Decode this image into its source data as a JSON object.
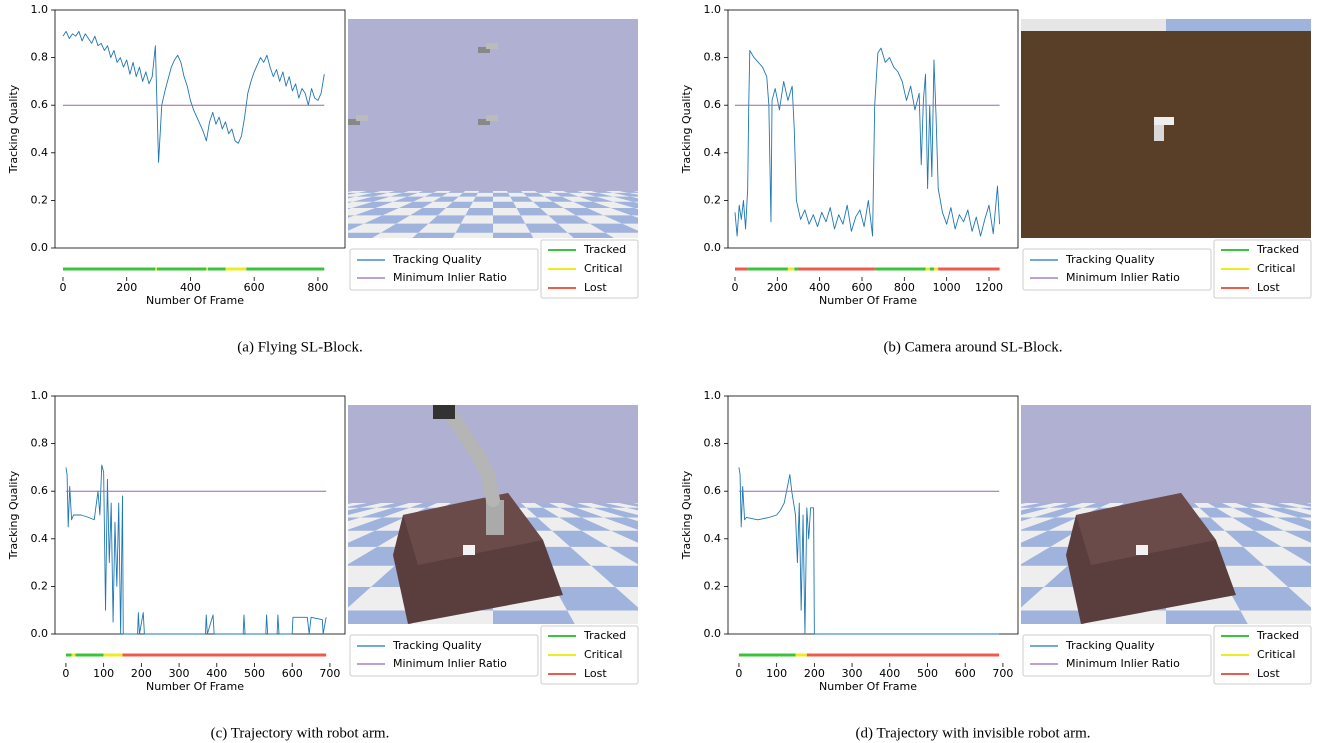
{
  "chart_data": [
    {
      "type": "line",
      "caption": "(a) Flying SL-Block.",
      "y_label": "Tracking Quality",
      "x_label": "Number Of Frame",
      "xlim": [
        -25,
        885
      ],
      "xticks": [
        0,
        200,
        400,
        600,
        800
      ],
      "ylim": [
        0,
        1
      ],
      "yticks": [
        {
          "value": 0,
          "label": "0.0"
        },
        0.2,
        0.4,
        0.6,
        0.8,
        {
          "value": 1,
          "label": "1.0"
        }
      ],
      "series": [
        {
          "name": "Tracking Quality",
          "color": "#1f77b4",
          "x": [
            0,
            10,
            20,
            30,
            40,
            50,
            60,
            70,
            80,
            90,
            100,
            110,
            120,
            130,
            140,
            150,
            160,
            170,
            180,
            190,
            200,
            210,
            220,
            230,
            240,
            250,
            260,
            270,
            280,
            290,
            295,
            300,
            310,
            320,
            330,
            340,
            350,
            360,
            370,
            380,
            390,
            400,
            410,
            420,
            430,
            440,
            450,
            460,
            470,
            480,
            490,
            500,
            510,
            520,
            530,
            540,
            550,
            560,
            570,
            580,
            590,
            600,
            610,
            620,
            630,
            640,
            650,
            660,
            670,
            680,
            690,
            700,
            710,
            720,
            730,
            740,
            750,
            760,
            770,
            780,
            790,
            800,
            810,
            820
          ],
          "values": [
            0.89,
            0.91,
            0.88,
            0.9,
            0.89,
            0.91,
            0.87,
            0.9,
            0.88,
            0.86,
            0.89,
            0.85,
            0.86,
            0.83,
            0.85,
            0.8,
            0.83,
            0.78,
            0.8,
            0.76,
            0.79,
            0.73,
            0.78,
            0.72,
            0.76,
            0.7,
            0.74,
            0.69,
            0.72,
            0.85,
            0.6,
            0.36,
            0.6,
            0.66,
            0.71,
            0.76,
            0.79,
            0.81,
            0.78,
            0.72,
            0.68,
            0.62,
            0.58,
            0.55,
            0.52,
            0.49,
            0.45,
            0.53,
            0.57,
            0.52,
            0.55,
            0.5,
            0.53,
            0.48,
            0.5,
            0.45,
            0.44,
            0.47,
            0.55,
            0.65,
            0.7,
            0.74,
            0.77,
            0.8,
            0.78,
            0.81,
            0.76,
            0.72,
            0.75,
            0.7,
            0.74,
            0.68,
            0.72,
            0.66,
            0.69,
            0.63,
            0.67,
            0.65,
            0.6,
            0.67,
            0.63,
            0.62,
            0.65,
            0.73
          ]
        },
        {
          "name": "Minimum Inlier Ratio",
          "color": "#9467bd",
          "x": [
            0,
            820
          ],
          "values": [
            0.6,
            0.6
          ]
        }
      ],
      "status": [
        {
          "name": "Tracked",
          "color": "#3ac43a",
          "segments": [
            [
              0,
              290
            ],
            [
              295,
              450
            ],
            [
              455,
              510
            ],
            [
              575,
              820
            ]
          ]
        },
        {
          "name": "Critical",
          "color": "#ecec20",
          "segments": [
            [
              290,
              295
            ],
            [
              450,
              455
            ],
            [
              510,
              575
            ]
          ]
        },
        {
          "name": "Lost",
          "color": "#f05a4a",
          "segments": []
        }
      ]
    },
    {
      "type": "line",
      "caption": "(b) Camera around SL-Block.",
      "y_label": "Tracking Quality",
      "x_label": "Number Of Frame",
      "xlim": [
        -33,
        1337
      ],
      "xticks": [
        0,
        200,
        400,
        600,
        800,
        1000,
        1200
      ],
      "ylim": [
        0,
        1
      ],
      "yticks": [
        {
          "value": 0,
          "label": "0.0"
        },
        0.2,
        0.4,
        0.6,
        0.8,
        {
          "value": 1,
          "label": "1.0"
        }
      ],
      "series": [
        {
          "name": "Tracking Quality",
          "color": "#1f77b4",
          "x": [
            0,
            10,
            20,
            30,
            40,
            50,
            60,
            65,
            70,
            90,
            110,
            130,
            150,
            160,
            170,
            175,
            190,
            210,
            230,
            250,
            270,
            280,
            290,
            310,
            330,
            350,
            370,
            390,
            410,
            430,
            450,
            470,
            490,
            510,
            530,
            550,
            570,
            590,
            610,
            630,
            650,
            660,
            675,
            690,
            710,
            730,
            750,
            770,
            790,
            810,
            830,
            850,
            870,
            880,
            890,
            900,
            910,
            920,
            930,
            940,
            950,
            960,
            980,
            1000,
            1020,
            1040,
            1060,
            1080,
            1100,
            1120,
            1140,
            1160,
            1180,
            1200,
            1220,
            1240,
            1250
          ],
          "values": [
            0.15,
            0.05,
            0.18,
            0.12,
            0.2,
            0.08,
            0.25,
            0.6,
            0.83,
            0.8,
            0.78,
            0.76,
            0.72,
            0.6,
            0.11,
            0.62,
            0.67,
            0.58,
            0.7,
            0.62,
            0.68,
            0.5,
            0.2,
            0.12,
            0.16,
            0.1,
            0.14,
            0.09,
            0.15,
            0.11,
            0.17,
            0.08,
            0.14,
            0.1,
            0.18,
            0.07,
            0.13,
            0.16,
            0.09,
            0.2,
            0.05,
            0.6,
            0.82,
            0.84,
            0.78,
            0.8,
            0.76,
            0.74,
            0.7,
            0.62,
            0.68,
            0.58,
            0.65,
            0.35,
            0.62,
            0.73,
            0.25,
            0.6,
            0.3,
            0.79,
            0.55,
            0.25,
            0.15,
            0.1,
            0.17,
            0.08,
            0.14,
            0.11,
            0.16,
            0.07,
            0.13,
            0.05,
            0.12,
            0.18,
            0.06,
            0.26,
            0.1
          ]
        },
        {
          "name": "Minimum Inlier Ratio",
          "color": "#9467bd",
          "x": [
            0,
            1250
          ],
          "values": [
            0.6,
            0.6
          ]
        }
      ],
      "status": [
        {
          "name": "Tracked",
          "color": "#3ac43a",
          "segments": [
            [
              60,
              250
            ],
            [
              280,
              300
            ],
            [
              660,
              900
            ],
            [
              920,
              940
            ]
          ]
        },
        {
          "name": "Critical",
          "color": "#ecec20",
          "segments": [
            [
              250,
              280
            ],
            [
              900,
              920
            ],
            [
              940,
              960
            ]
          ]
        },
        {
          "name": "Lost",
          "color": "#f05a4a",
          "segments": [
            [
              0,
              60
            ],
            [
              300,
              660
            ],
            [
              960,
              1250
            ]
          ]
        }
      ]
    },
    {
      "type": "line",
      "caption": "(c) Trajectory with robot arm.",
      "y_label": "Tracking Quality",
      "x_label": "Number Of Frame",
      "xlim": [
        -29,
        740
      ],
      "xticks": [
        0,
        100,
        200,
        300,
        400,
        500,
        600,
        700
      ],
      "ylim": [
        0,
        1
      ],
      "yticks": [
        {
          "value": 0,
          "label": "0.0"
        },
        0.2,
        0.4,
        0.6,
        0.8,
        {
          "value": 1,
          "label": "1.0"
        }
      ],
      "series": [
        {
          "name": "Tracking Quality",
          "color": "#1f77b4",
          "x": [
            0,
            3,
            6,
            10,
            15,
            20,
            40,
            60,
            75,
            85,
            90,
            95,
            100,
            105,
            110,
            115,
            120,
            125,
            130,
            135,
            140,
            145,
            150,
            152,
            160,
            190,
            192,
            195,
            205,
            208,
            370,
            372,
            375,
            390,
            393,
            470,
            472,
            475,
            530,
            532,
            535,
            560,
            562,
            565,
            600,
            602,
            640,
            645,
            650,
            680,
            682,
            690
          ],
          "values": [
            0.7,
            0.67,
            0.45,
            0.62,
            0.48,
            0.5,
            0.5,
            0.49,
            0.48,
            0.6,
            0.5,
            0.71,
            0.68,
            0.1,
            0.65,
            0.3,
            0.55,
            0.05,
            0.47,
            0.2,
            0.55,
            0,
            0.58,
            0,
            0,
            0,
            0.09,
            0,
            0.09,
            0,
            0,
            0.08,
            0,
            0.08,
            0,
            0,
            0.08,
            0,
            0,
            0.08,
            0,
            0,
            0.08,
            0,
            0,
            0.07,
            0.07,
            0,
            0.07,
            0.06,
            0,
            0.07
          ]
        },
        {
          "name": "Minimum Inlier Ratio",
          "color": "#9467bd",
          "x": [
            0,
            690
          ],
          "values": [
            0.6,
            0.6
          ]
        }
      ],
      "status": [
        {
          "name": "Tracked",
          "color": "#3ac43a",
          "segments": [
            [
              0,
              15
            ],
            [
              25,
              100
            ]
          ]
        },
        {
          "name": "Critical",
          "color": "#ecec20",
          "segments": [
            [
              15,
              25
            ],
            [
              100,
              150
            ]
          ]
        },
        {
          "name": "Lost",
          "color": "#f05a4a",
          "segments": [
            [
              150,
              690
            ]
          ]
        }
      ]
    },
    {
      "type": "line",
      "caption": "(d) Trajectory with invisible robot arm.",
      "y_label": "Tracking Quality",
      "x_label": "Number Of Frame",
      "xlim": [
        -29,
        740
      ],
      "xticks": [
        0,
        100,
        200,
        300,
        400,
        500,
        600,
        700
      ],
      "ylim": [
        0,
        1
      ],
      "yticks": [
        {
          "value": 0,
          "label": "0.0"
        },
        0.2,
        0.4,
        0.6,
        0.8,
        {
          "value": 1,
          "label": "1.0"
        }
      ],
      "series": [
        {
          "name": "Tracking Quality",
          "color": "#1f77b4",
          "x": [
            0,
            3,
            6,
            10,
            15,
            20,
            50,
            80,
            100,
            110,
            120,
            130,
            135,
            140,
            150,
            155,
            160,
            165,
            170,
            175,
            180,
            185,
            190,
            198,
            200,
            690
          ],
          "values": [
            0.7,
            0.67,
            0.45,
            0.62,
            0.48,
            0.49,
            0.48,
            0.49,
            0.5,
            0.52,
            0.55,
            0.63,
            0.67,
            0.6,
            0.5,
            0.3,
            0.55,
            0.1,
            0.5,
            0,
            0.53,
            0.4,
            0.53,
            0.53,
            0,
            0
          ]
        },
        {
          "name": "Minimum Inlier Ratio",
          "color": "#9467bd",
          "x": [
            0,
            690
          ],
          "values": [
            0.6,
            0.6
          ]
        }
      ],
      "status": [
        {
          "name": "Tracked",
          "color": "#3ac43a",
          "segments": [
            [
              0,
              150
            ]
          ]
        },
        {
          "name": "Critical",
          "color": "#ecec20",
          "segments": [
            [
              150,
              180
            ]
          ]
        },
        {
          "name": "Lost",
          "color": "#f05a4a",
          "segments": [
            [
              180,
              690
            ]
          ]
        }
      ]
    }
  ]
}
